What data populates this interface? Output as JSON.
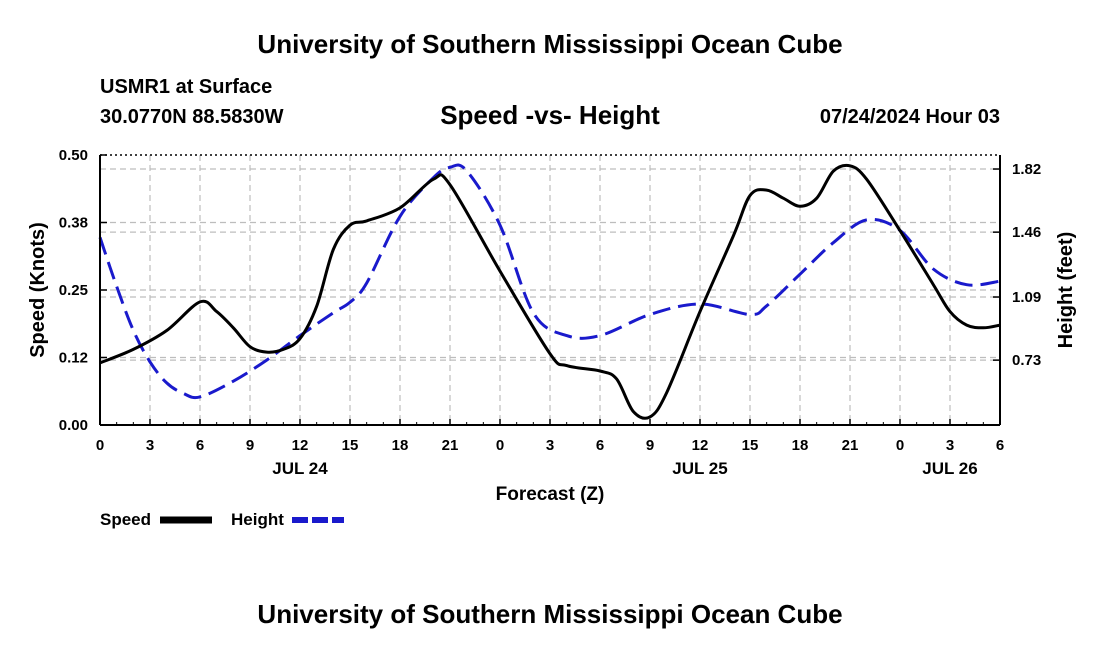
{
  "header": {
    "title": "University of Southern Mississippi Ocean Cube",
    "station": "USMR1 at Surface",
    "coords": "30.0770N  88.5830W",
    "subtitle": "Speed -vs- Height",
    "datetime": "07/24/2024 Hour 03"
  },
  "footer": {
    "title": "University of Southern Mississippi Ocean Cube"
  },
  "chart_data": {
    "type": "line",
    "title": "Speed -vs- Height",
    "xlabel": "Forecast (Z)",
    "ylabel": "Speed (Knots)",
    "y2label": "Height (feet)",
    "x_range": [
      0,
      54
    ],
    "ylim": [
      0,
      0.5
    ],
    "y2lim": [
      0.36,
      1.9
    ],
    "x_ticks": [
      {
        "x": 0,
        "label": "0"
      },
      {
        "x": 3,
        "label": "3"
      },
      {
        "x": 6,
        "label": "6"
      },
      {
        "x": 9,
        "label": "9"
      },
      {
        "x": 12,
        "label": "12"
      },
      {
        "x": 15,
        "label": "15"
      },
      {
        "x": 18,
        "label": "18"
      },
      {
        "x": 21,
        "label": "21"
      },
      {
        "x": 24,
        "label": "0"
      },
      {
        "x": 27,
        "label": "3"
      },
      {
        "x": 30,
        "label": "6"
      },
      {
        "x": 33,
        "label": "9"
      },
      {
        "x": 36,
        "label": "12"
      },
      {
        "x": 39,
        "label": "15"
      },
      {
        "x": 42,
        "label": "18"
      },
      {
        "x": 45,
        "label": "21"
      },
      {
        "x": 48,
        "label": "0"
      },
      {
        "x": 51,
        "label": "3"
      },
      {
        "x": 54,
        "label": "6"
      }
    ],
    "day_labels": [
      {
        "x": 12,
        "label": "JUL 24"
      },
      {
        "x": 36,
        "label": "JUL 25"
      },
      {
        "x": 51,
        "label": "JUL 26"
      }
    ],
    "y_ticks": [
      {
        "value": 0.0,
        "label": "0.00"
      },
      {
        "value": 0.125,
        "label": "0.12"
      },
      {
        "value": 0.25,
        "label": "0.25"
      },
      {
        "value": 0.375,
        "label": "0.38"
      },
      {
        "value": 0.5,
        "label": "0.50"
      }
    ],
    "y2_ticks": [
      {
        "value": 0.73,
        "label": "0.73"
      },
      {
        "value": 1.09,
        "label": "1.09"
      },
      {
        "value": 1.46,
        "label": "1.46"
      },
      {
        "value": 1.82,
        "label": "1.82"
      }
    ],
    "grid": true,
    "legend": {
      "position": "bottom-left",
      "speed_label": "Speed",
      "height_label": "Height"
    },
    "series": [
      {
        "name": "Speed",
        "axis": "left",
        "color": "#000000",
        "dashed": false,
        "x": [
          0,
          2,
          4,
          6,
          7,
          8,
          9,
          10,
          11,
          12,
          13,
          14,
          15,
          16,
          18,
          20,
          21,
          24,
          27,
          28,
          30,
          31,
          32,
          33,
          34,
          36,
          38,
          39,
          40,
          41,
          42,
          43,
          44,
          45,
          46,
          48,
          50,
          51,
          52,
          53,
          54
        ],
        "values": [
          0.115,
          0.14,
          0.175,
          0.228,
          0.21,
          0.18,
          0.145,
          0.135,
          0.14,
          0.16,
          0.22,
          0.325,
          0.37,
          0.378,
          0.402,
          0.455,
          0.445,
          0.285,
          0.132,
          0.11,
          0.1,
          0.085,
          0.025,
          0.015,
          0.06,
          0.21,
          0.35,
          0.425,
          0.435,
          0.42,
          0.405,
          0.42,
          0.47,
          0.48,
          0.455,
          0.36,
          0.26,
          0.21,
          0.185,
          0.18,
          0.185
        ]
      },
      {
        "name": "Height",
        "axis": "right",
        "color": "#1a1acc",
        "dashed": true,
        "x": [
          0,
          1,
          2,
          3,
          4,
          5,
          6,
          8,
          10,
          12,
          14,
          15,
          16,
          18,
          20,
          21,
          22,
          24,
          26,
          28,
          30,
          33,
          36,
          39,
          40,
          42,
          44,
          46,
          48,
          50,
          52,
          54
        ],
        "values": [
          1.43,
          1.15,
          0.9,
          0.72,
          0.6,
          0.54,
          0.52,
          0.61,
          0.73,
          0.87,
          1.0,
          1.06,
          1.17,
          1.55,
          1.77,
          1.83,
          1.81,
          1.5,
          1.0,
          0.87,
          0.87,
          0.99,
          1.05,
          0.99,
          1.04,
          1.22,
          1.4,
          1.53,
          1.47,
          1.25,
          1.16,
          1.18
        ]
      }
    ]
  }
}
